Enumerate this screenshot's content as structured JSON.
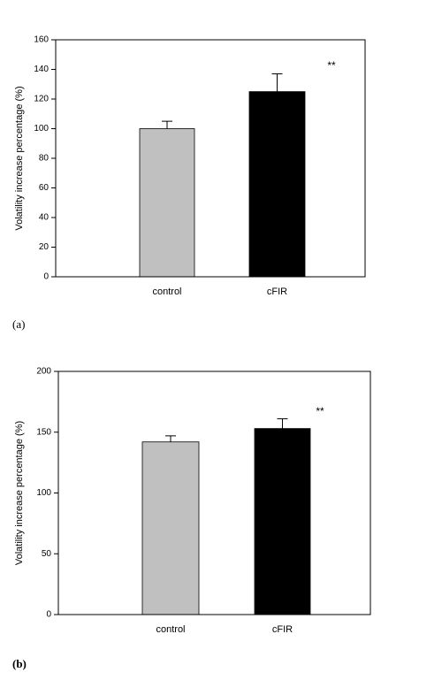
{
  "chart_data": [
    {
      "type": "bar",
      "ylabel": "Volatility increase percentage (%)",
      "categories": [
        "control",
        "cFIR"
      ],
      "values": [
        100,
        125
      ],
      "errors": [
        5,
        12
      ],
      "colors": [
        "#c0c0c0",
        "#000000"
      ],
      "ylim": [
        0,
        160
      ],
      "yticks": [
        0,
        20,
        40,
        60,
        80,
        100,
        120,
        140,
        160
      ],
      "annotation": "**",
      "panel_label": "(a)"
    },
    {
      "type": "bar",
      "ylabel": "Volatility increase percentage (%)",
      "categories": [
        "control",
        "cFIR"
      ],
      "values": [
        142,
        153
      ],
      "errors": [
        5,
        8
      ],
      "colors": [
        "#c0c0c0",
        "#000000"
      ],
      "ylim": [
        0,
        200
      ],
      "yticks": [
        0,
        50,
        100,
        150,
        200
      ],
      "annotation": "**",
      "panel_label": "(b)"
    }
  ]
}
